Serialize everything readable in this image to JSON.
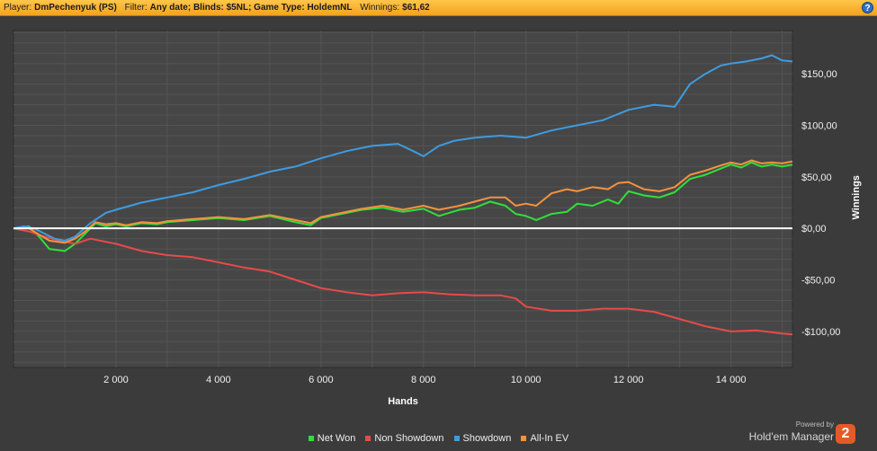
{
  "header": {
    "player_label": "Player:",
    "player_value": "DmPechenyuk (PS)",
    "filter_label": "Filter:",
    "filter_value": "Any date; Blinds: $5NL; Game Type: HoldemNL",
    "winnings_label": "Winnings:",
    "winnings_value": "$61,62",
    "help_glyph": "?"
  },
  "brand": {
    "powered": "Powered by",
    "name": "Hold'em Manager",
    "logo": "2"
  },
  "colors": {
    "background": "#3b3b3b",
    "plot": "#464646",
    "grid": "#545454",
    "zero_line": "#ffffff"
  },
  "chart_data": {
    "type": "line",
    "xlabel": "Hands",
    "ylabel": "Winnings",
    "xlim": [
      0,
      15200
    ],
    "ylim": [
      -135,
      192
    ],
    "x_ticks": [
      2000,
      4000,
      6000,
      8000,
      10000,
      12000,
      14000
    ],
    "x_tick_labels": [
      "2 000",
      "4 000",
      "6 000",
      "8 000",
      "10 000",
      "12 000",
      "14 000"
    ],
    "y_ticks": [
      150,
      100,
      50,
      0,
      -50,
      -100
    ],
    "y_tick_labels": [
      "$150,00",
      "$100,00",
      "$50,00",
      "$0,00",
      "-$50,00",
      "-$100,00"
    ],
    "grid": true,
    "legend_position": "bottom",
    "series": [
      {
        "name": "Net Won",
        "color": "#2fe03a",
        "x": [
          0,
          300,
          500,
          700,
          1000,
          1200,
          1400,
          1600,
          1800,
          2000,
          2200,
          2500,
          2800,
          3000,
          3500,
          4000,
          4500,
          5000,
          5500,
          5800,
          6000,
          6300,
          6800,
          7200,
          7600,
          8000,
          8300,
          8700,
          9000,
          9300,
          9600,
          9800,
          10000,
          10200,
          10500,
          10800,
          11000,
          11300,
          11600,
          11800,
          12000,
          12300,
          12600,
          12900,
          13200,
          13500,
          13800,
          14000,
          14200,
          14400,
          14600,
          14800,
          15000,
          15200
        ],
        "y": [
          0,
          2,
          -8,
          -20,
          -22,
          -15,
          -5,
          5,
          2,
          4,
          2,
          5,
          4,
          6,
          8,
          10,
          8,
          12,
          6,
          3,
          10,
          13,
          18,
          20,
          16,
          19,
          12,
          18,
          20,
          26,
          22,
          14,
          12,
          8,
          14,
          16,
          24,
          22,
          28,
          24,
          36,
          32,
          30,
          35,
          48,
          52,
          58,
          62,
          59,
          64,
          60,
          62,
          60,
          62
        ]
      },
      {
        "name": "Non Showdown",
        "color": "#e84a4a",
        "x": [
          0,
          300,
          600,
          900,
          1200,
          1500,
          2000,
          2500,
          3000,
          3500,
          4000,
          4500,
          5000,
          5500,
          6000,
          6500,
          7000,
          7500,
          8000,
          8500,
          9000,
          9500,
          9800,
          10000,
          10500,
          11000,
          11500,
          12000,
          12500,
          13000,
          13500,
          14000,
          14500,
          15000,
          15200
        ],
        "y": [
          0,
          -3,
          -8,
          -12,
          -15,
          -10,
          -15,
          -22,
          -26,
          -28,
          -33,
          -38,
          -42,
          -50,
          -58,
          -62,
          -65,
          -63,
          -62,
          -64,
          -65,
          -65,
          -68,
          -76,
          -80,
          -80,
          -78,
          -78,
          -81,
          -88,
          -95,
          -100,
          -99,
          -102,
          -103
        ]
      },
      {
        "name": "Showdown",
        "color": "#3f9be0",
        "x": [
          0,
          200,
          400,
          600,
          800,
          1000,
          1200,
          1500,
          1800,
          2000,
          2500,
          3000,
          3500,
          4000,
          4500,
          5000,
          5500,
          6000,
          6500,
          7000,
          7500,
          7800,
          8000,
          8300,
          8600,
          9000,
          9500,
          10000,
          10500,
          11000,
          11500,
          12000,
          12500,
          12900,
          13200,
          13500,
          13800,
          14000,
          14300,
          14600,
          14800,
          15000,
          15200
        ],
        "y": [
          0,
          2,
          0,
          -5,
          -10,
          -12,
          -8,
          5,
          15,
          18,
          25,
          30,
          35,
          42,
          48,
          55,
          60,
          68,
          75,
          80,
          82,
          75,
          70,
          80,
          85,
          88,
          90,
          88,
          95,
          100,
          105,
          115,
          120,
          118,
          140,
          150,
          158,
          160,
          162,
          165,
          168,
          163,
          162
        ]
      },
      {
        "name": "All-In EV",
        "color": "#f5923e",
        "x": [
          0,
          300,
          500,
          700,
          1000,
          1200,
          1400,
          1600,
          1800,
          2000,
          2200,
          2500,
          2800,
          3000,
          3500,
          4000,
          4500,
          5000,
          5500,
          5800,
          6000,
          6300,
          6800,
          7200,
          7600,
          8000,
          8300,
          8700,
          9000,
          9300,
          9600,
          9800,
          10000,
          10200,
          10500,
          10800,
          11000,
          11300,
          11600,
          11800,
          12000,
          12300,
          12600,
          12900,
          13200,
          13500,
          13800,
          14000,
          14200,
          14400,
          14600,
          14800,
          15000,
          15200
        ],
        "y": [
          0,
          0,
          -6,
          -12,
          -14,
          -10,
          -3,
          6,
          4,
          5,
          3,
          6,
          5,
          7,
          9,
          11,
          9,
          13,
          8,
          5,
          11,
          14,
          19,
          22,
          18,
          22,
          18,
          22,
          26,
          30,
          30,
          22,
          24,
          22,
          34,
          38,
          36,
          40,
          38,
          44,
          45,
          38,
          36,
          40,
          52,
          56,
          61,
          64,
          62,
          66,
          63,
          64,
          63,
          65
        ]
      }
    ]
  }
}
